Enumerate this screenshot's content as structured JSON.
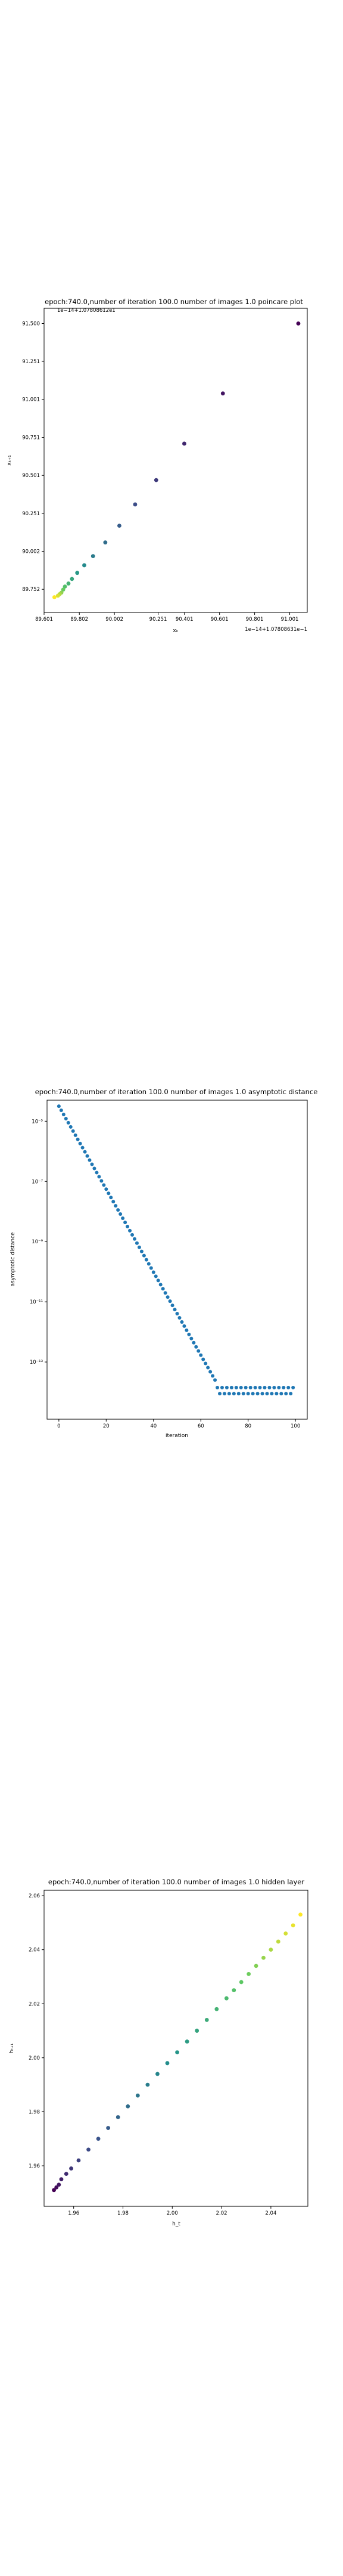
{
  "chart_data": [
    {
      "type": "scatter",
      "title": "epoch:740.0,number of iteration 100.0 number of images 1.0 poincare plot",
      "xlabel": "xₖ",
      "ylabel": "xₖ₊₁",
      "offset_top_left": "1e−14+1.07808612e1",
      "offset_bottom_right": "1e−14+1.07808631e−1",
      "x_ticks": [
        "89.601",
        "89.802",
        "90.002",
        "90.251",
        "90.401",
        "90.601",
        "90.801",
        "91.001"
      ],
      "y_ticks": [
        "91.500",
        "91.251",
        "91.001",
        "90.751",
        "90.501",
        "90.251",
        "90.002",
        "89.752"
      ],
      "xlim": [
        89.601,
        91.101
      ],
      "ylim": [
        89.6,
        91.6
      ],
      "colormap": "viridis",
      "grid": false,
      "x": [
        89.66,
        89.68,
        89.69,
        89.7,
        89.71,
        89.72,
        89.74,
        89.76,
        89.79,
        89.83,
        89.88,
        89.95,
        90.03,
        90.12,
        90.24,
        90.4,
        90.62,
        91.05
      ],
      "y": [
        89.7,
        89.71,
        89.72,
        89.73,
        89.75,
        89.77,
        89.79,
        89.82,
        89.86,
        89.91,
        89.97,
        90.06,
        90.17,
        90.31,
        90.47,
        90.71,
        91.04,
        91.5
      ]
    },
    {
      "type": "scatter",
      "title": "epoch:740.0,number of iteration 100.0  number of images 1.0 asymptotic distance",
      "xlabel": "iteration",
      "ylabel": "asymptotic distance",
      "x_ticks": [
        "0",
        "20",
        "40",
        "60",
        "80",
        "100"
      ],
      "y_ticks": [
        "10⁻⁵",
        "10⁻⁷",
        "10⁻⁹",
        "10⁻¹¹",
        "10⁻¹³"
      ],
      "xlim": [
        -5,
        105
      ],
      "ylim_log10": [
        -14.9,
        -4.3
      ],
      "yscale": "log",
      "color": "#1f77b4",
      "grid": false,
      "series": [
        {
          "x": [
            0,
            66
          ],
          "log10_y_start": -4.5,
          "log10_y_end": -13.6,
          "x_step": 1
        },
        {
          "x": [
            67,
            99
          ],
          "log10_y_pattern": [
            -13.85,
            -14.05
          ],
          "x_step": 1
        }
      ]
    },
    {
      "type": "scatter",
      "title": "epoch:740.0,number of iteration 100.0  number of images 1.0 hidden layer",
      "xlabel": "h_t",
      "ylabel": "hₜ₊₁",
      "x_ticks": [
        "1.96",
        "1.98",
        "2.00",
        "2.02",
        "2.04"
      ],
      "y_ticks": [
        "2.06",
        "2.04",
        "2.02",
        "2.00",
        "1.98",
        "1.96"
      ],
      "xlim": [
        1.948,
        2.055
      ],
      "ylim": [
        1.945,
        2.062
      ],
      "colormap": "viridis",
      "grid": false,
      "x": [
        1.952,
        1.953,
        1.954,
        1.955,
        1.957,
        1.959,
        1.962,
        1.966,
        1.97,
        1.974,
        1.978,
        1.982,
        1.986,
        1.99,
        1.994,
        1.998,
        2.002,
        2.006,
        2.01,
        2.014,
        2.018,
        2.022,
        2.025,
        2.028,
        2.031,
        2.034,
        2.037,
        2.04,
        2.043,
        2.046,
        2.049,
        2.052
      ],
      "y": [
        1.951,
        1.952,
        1.953,
        1.955,
        1.957,
        1.959,
        1.962,
        1.966,
        1.97,
        1.974,
        1.978,
        1.982,
        1.986,
        1.99,
        1.994,
        1.998,
        2.002,
        2.006,
        2.01,
        2.014,
        2.018,
        2.022,
        2.025,
        2.028,
        2.031,
        2.034,
        2.037,
        2.04,
        2.043,
        2.046,
        2.049,
        2.053
      ]
    }
  ]
}
